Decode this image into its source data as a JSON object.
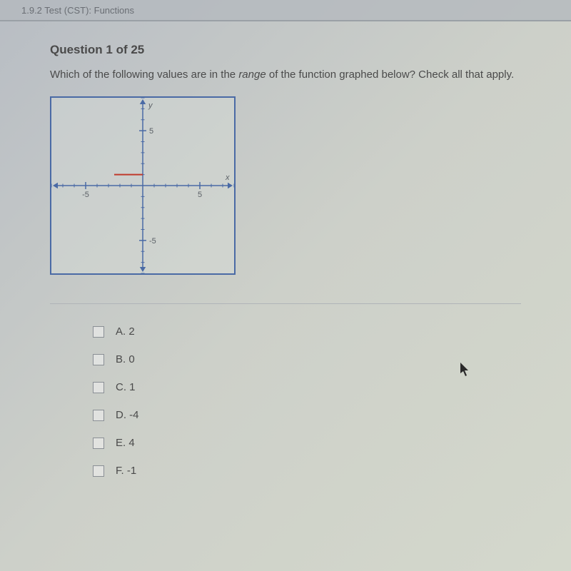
{
  "topbar": {
    "text": "1.9.2 Test (CST): Functions"
  },
  "question": {
    "header": "Question 1 of 25",
    "prompt_pre": "Which of the following values are in the ",
    "prompt_italic": "range",
    "prompt_post": " of the function graphed below? Check all that apply."
  },
  "graph": {
    "border_color": "#4a6aa5",
    "axis_color": "#4a6aa5",
    "tick_color": "#4a6aa5",
    "tick_label_color": "#5a5f65",
    "tick_fontsize": 11,
    "x_axis_label": "x",
    "y_axis_label": "y",
    "xlim": [
      -8,
      8
    ],
    "ylim": [
      -8,
      8
    ],
    "tick_marks": [
      -5,
      5
    ],
    "tick_labels": {
      "neg": "-5",
      "pos": "5"
    },
    "arrow_size": 7,
    "function_segment": {
      "color": "#c0392b",
      "y_value": 1,
      "x_start": -2.5,
      "x_end": 0,
      "line_width": 2
    }
  },
  "answers": [
    {
      "letter": "A.",
      "value": "2"
    },
    {
      "letter": "B.",
      "value": "0"
    },
    {
      "letter": "C.",
      "value": "1"
    },
    {
      "letter": "D.",
      "value": "-4"
    },
    {
      "letter": "E.",
      "value": "4"
    },
    {
      "letter": "F.",
      "value": "-1"
    }
  ],
  "cursor_color": "#2a2a2a"
}
